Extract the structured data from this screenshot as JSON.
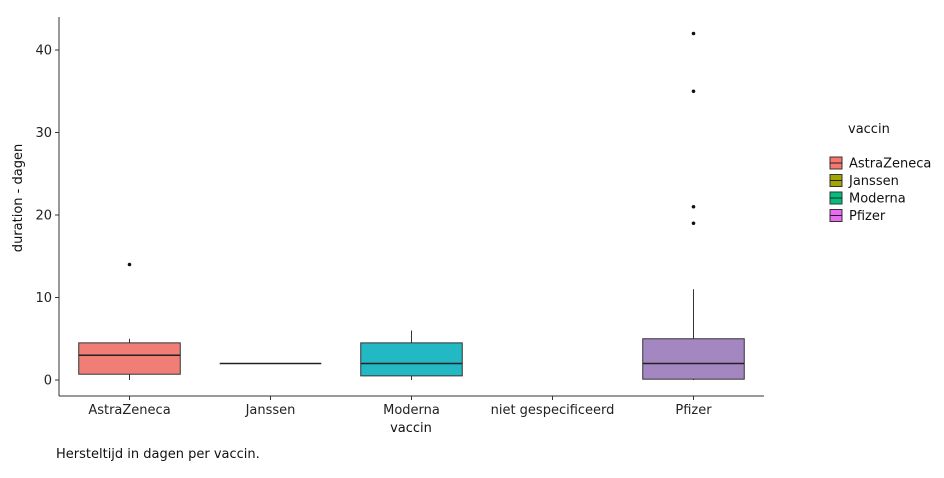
{
  "caption": "Hersteltijd in dagen per vaccin.",
  "chart_data": {
    "type": "boxplot",
    "xlabel": "vaccin",
    "ylabel": "duration - dagen",
    "ylim": [
      -2,
      44
    ],
    "yticks": [
      0,
      10,
      20,
      30,
      40
    ],
    "grid": false,
    "legend": {
      "title": "vaccin",
      "position": "right",
      "entries": [
        "AstraZeneca",
        "Janssen",
        "Moderna",
        "Pfizer"
      ]
    },
    "categories": [
      "AstraZeneca",
      "Janssen",
      "Moderna",
      "niet gespecificeerd",
      "Pfizer"
    ],
    "boxes": [
      {
        "category": "AstraZeneca",
        "color": "#F07E76",
        "min": 0,
        "q1": 0.7,
        "median": 3,
        "q3": 4.5,
        "max": 5,
        "outliers": [
          14
        ]
      },
      {
        "category": "Janssen",
        "color": "#A3A500",
        "min": 2,
        "q1": 2,
        "median": 2,
        "q3": 2,
        "max": 2,
        "outliers": []
      },
      {
        "category": "Moderna",
        "color": "#22B9C5",
        "min": 0,
        "q1": 0.5,
        "median": 2,
        "q3": 4.5,
        "max": 6,
        "outliers": []
      },
      {
        "category": "niet gespecificeerd",
        "color": "#00BF7D",
        "min": null,
        "q1": null,
        "median": null,
        "q3": null,
        "max": null,
        "outliers": []
      },
      {
        "category": "Pfizer",
        "color": "#A487C1",
        "min": 0,
        "q1": 0.1,
        "median": 2,
        "q3": 5,
        "max": 11,
        "outliers": [
          19,
          21,
          35,
          42
        ]
      }
    ]
  },
  "legend_colors": {
    "AstraZeneca": "#F8766D",
    "Janssen": "#A3A500",
    "Moderna": "#00BF7D",
    "Pfizer": "#E76BF3"
  }
}
